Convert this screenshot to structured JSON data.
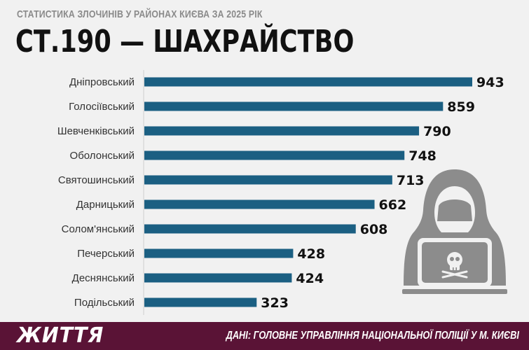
{
  "header": {
    "subtitle": "СТАТИСТИКА ЗЛОЧИНІВ У РАЙОНАХ КИЄВА ЗА 2025 РІК",
    "title": "СТ.190 — ШАХРАЙСТВО"
  },
  "footer": {
    "brand": "ЖИТТЯ",
    "source": "ДАНІ: ГОЛОВНЕ УПРАВЛІННЯ НАЦІОНАЛЬНОЇ ПОЛІЦІЇ У М. КИЄВІ"
  },
  "colors": {
    "bar": "#1b5f82",
    "footer": "#5a1336",
    "icon": "#8c8c8c"
  },
  "icons": [
    "hooded-hacker-icon",
    "skull-icon"
  ],
  "chart_data": {
    "type": "bar",
    "orientation": "horizontal",
    "categories": [
      "Дніпровський",
      "Голосіївський",
      "Шевченківський",
      "Оболонський",
      "Святошинський",
      "Дарницький",
      "Солом'янський",
      "Печерський",
      "Деснянський",
      "Подільський"
    ],
    "values": [
      943,
      859,
      790,
      748,
      713,
      662,
      608,
      428,
      424,
      323
    ],
    "xlim": [
      0,
      943
    ],
    "grid": false,
    "legend": "none",
    "data_labels": true
  }
}
